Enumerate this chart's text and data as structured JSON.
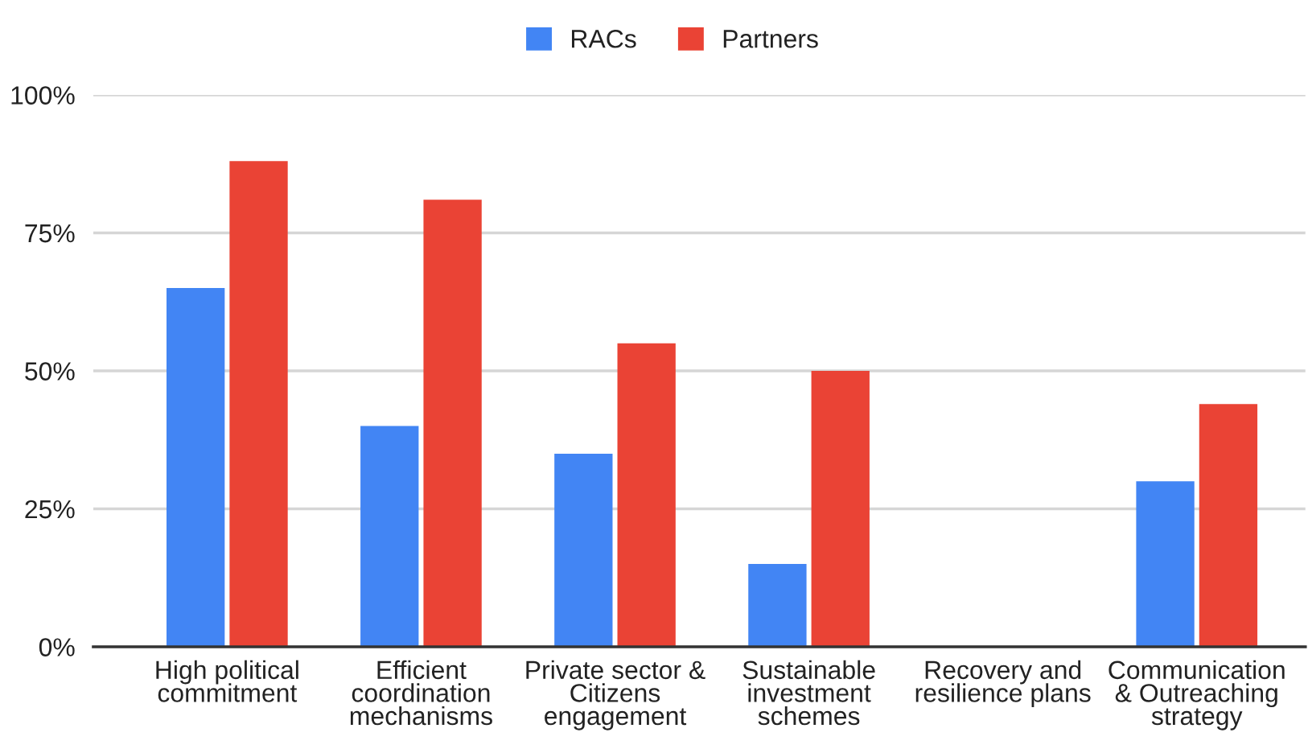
{
  "chart_data": {
    "type": "bar",
    "categories": [
      "High political\ncommitment",
      "Efficient\ncoordination\nmechanisms",
      "Private sector &\nCitizens\nengagement",
      "Sustainable\ninvestment\nschemes",
      "Recovery and\nresilience plans",
      "Communication\n& Outreaching\nstrategy"
    ],
    "series": [
      {
        "name": "RACs",
        "color": "#4285f4",
        "values": [
          65,
          40,
          35,
          15,
          0,
          30
        ]
      },
      {
        "name": "Partners",
        "color": "#ea4335",
        "values": [
          88,
          81,
          55,
          50,
          0,
          44
        ]
      }
    ],
    "ylim": [
      0,
      100
    ],
    "yticks": [
      {
        "value": 0,
        "label": "0%"
      },
      {
        "value": 25,
        "label": "25%"
      },
      {
        "value": 50,
        "label": "50%"
      },
      {
        "value": 75,
        "label": "75%"
      },
      {
        "value": 100,
        "label": "100%"
      }
    ],
    "grid": "y",
    "legend": "top"
  }
}
